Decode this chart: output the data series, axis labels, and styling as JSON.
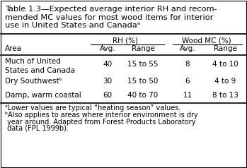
{
  "title_line1": "Table 1.3—Expected average interior RH and recom-",
  "title_line2": "mended MC values for most wood items for interior",
  "title_line3": "use in United States and Canadaᵃ",
  "col_group1": "RH (%)",
  "col_group2": "Wood MC (%)",
  "col_headers": [
    "Area",
    "Avg.",
    "Range",
    "Avg.",
    "Range"
  ],
  "rows": [
    [
      "Much of United\nStates and Canada",
      "40",
      "15 to 55",
      "8",
      "4 to 10"
    ],
    [
      "Dry Southwestᵇ",
      "30",
      "15 to 50",
      "6",
      "4 to 9"
    ],
    [
      "Damp, warm coastal",
      "60",
      "40 to 70",
      "11",
      "8 to 13"
    ]
  ],
  "footnote_a": "ᵃLower values are typical “heating season” values.",
  "footnote_b1": "ᵇAlso applies to areas where interior environment is dry",
  "footnote_b2": " year around. Adapted from Forest Products Laboratory",
  "footnote_b3": " data (FPL 1999b).",
  "bg_color": "#ffffff",
  "text_color": "#000000",
  "font_size": 7.5,
  "title_font_size": 8.2,
  "footnote_font_size": 7.0,
  "border_lw": 0.8,
  "thick_lw": 1.2,
  "thin_lw": 0.8
}
